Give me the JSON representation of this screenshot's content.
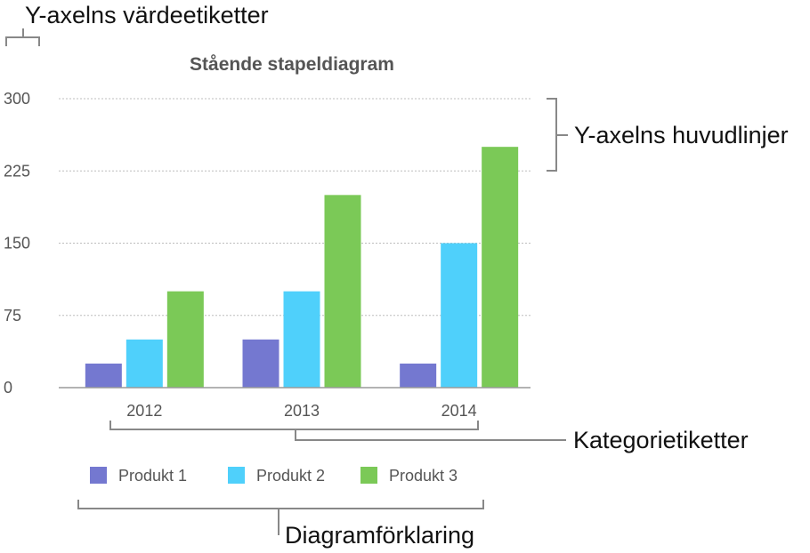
{
  "annotations": {
    "y_value_labels": "Y-axelns värdeetiketter",
    "y_major_gridlines": "Y-axelns huvudlinjer",
    "category_labels": "Kategorietiketter",
    "legend": "Diagramförklaring"
  },
  "chart_data": {
    "type": "bar",
    "title": "Stående stapeldiagram",
    "categories": [
      "2012",
      "2013",
      "2014"
    ],
    "series": [
      {
        "name": "Produkt 1",
        "color": "#7478d0",
        "values": [
          25,
          50,
          25
        ]
      },
      {
        "name": "Produkt 2",
        "color": "#4fd0fb",
        "values": [
          50,
          100,
          150
        ]
      },
      {
        "name": "Produkt 3",
        "color": "#7bc957",
        "values": [
          100,
          200,
          250
        ]
      }
    ],
    "yticks": [
      "0",
      "75",
      "150",
      "225",
      "300"
    ],
    "ylim": [
      0,
      300
    ],
    "grid": true,
    "legend_position": "bottom"
  }
}
